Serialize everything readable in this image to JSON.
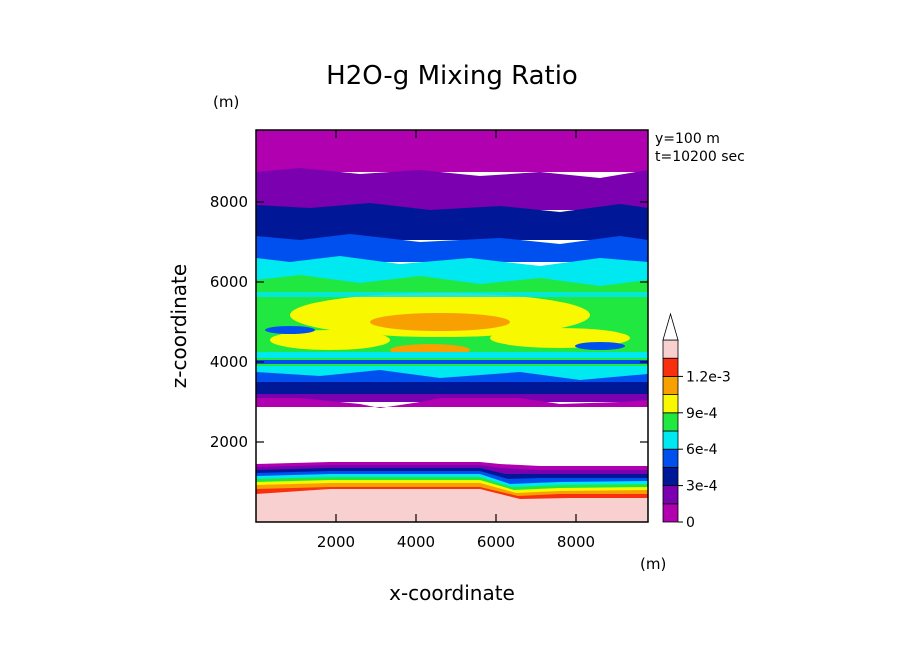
{
  "chart_data": {
    "type": "heatmap",
    "title": "H2O-g Mixing Ratio",
    "xlabel": "x-coordinate",
    "ylabel": "z-coordinate",
    "x_unit": "(m)",
    "y_unit": "(m)",
    "annotations": [
      "y=100 m",
      "t=10200 sec"
    ],
    "xlim": [
      0,
      9800
    ],
    "ylim": [
      0,
      9800
    ],
    "xticks": [
      2000,
      4000,
      6000,
      8000
    ],
    "yticks": [
      2000,
      4000,
      6000,
      8000
    ],
    "xtick_labels": [
      "2000",
      "4000",
      "6000",
      "8000"
    ],
    "ytick_labels": [
      "2000",
      "4000",
      "6000",
      "8000"
    ],
    "colorbar": {
      "levels": [
        0,
        0.00015,
        0.0003,
        0.00045,
        0.0006,
        0.00075,
        0.0009,
        0.00105,
        0.0012
      ],
      "colors": [
        "#b000b0",
        "#7a00b0",
        "#001898",
        "#0050f0",
        "#00e8f0",
        "#20e840",
        "#f8f800",
        "#f8a000",
        "#f83010",
        "#f8d0d0"
      ],
      "labels": [
        "0",
        "3e-4",
        "6e-4",
        "9e-4",
        "1.2e-3"
      ],
      "extend": "max"
    },
    "bands": [
      {
        "z_bottom": 0,
        "z_top": 900,
        "value_range": "> 1.2e-3"
      },
      {
        "z_bottom": 900,
        "z_top": 1500,
        "value_range": "1.5e-4 – 1.2e-3"
      },
      {
        "z_bottom": 1500,
        "z_top": 3000,
        "value_range": "< 0"
      },
      {
        "z_bottom": 3000,
        "z_top": 4000,
        "value_range": "0 – 4.5e-4"
      },
      {
        "z_bottom": 4000,
        "z_top": 5500,
        "value_range": "3e-4 – 9e-4"
      },
      {
        "z_bottom": 5500,
        "z_top": 6700,
        "value_range": "4.5e-4 – 7.5e-4"
      },
      {
        "z_bottom": 6700,
        "z_top": 7400,
        "value_range": "3e-4 – 4.5e-4"
      },
      {
        "z_bottom": 7400,
        "z_top": 8300,
        "value_range": "1.5e-4 – 3e-4"
      },
      {
        "z_bottom": 8300,
        "z_top": 9800,
        "value_range": "0 – 1.5e-4"
      }
    ]
  }
}
